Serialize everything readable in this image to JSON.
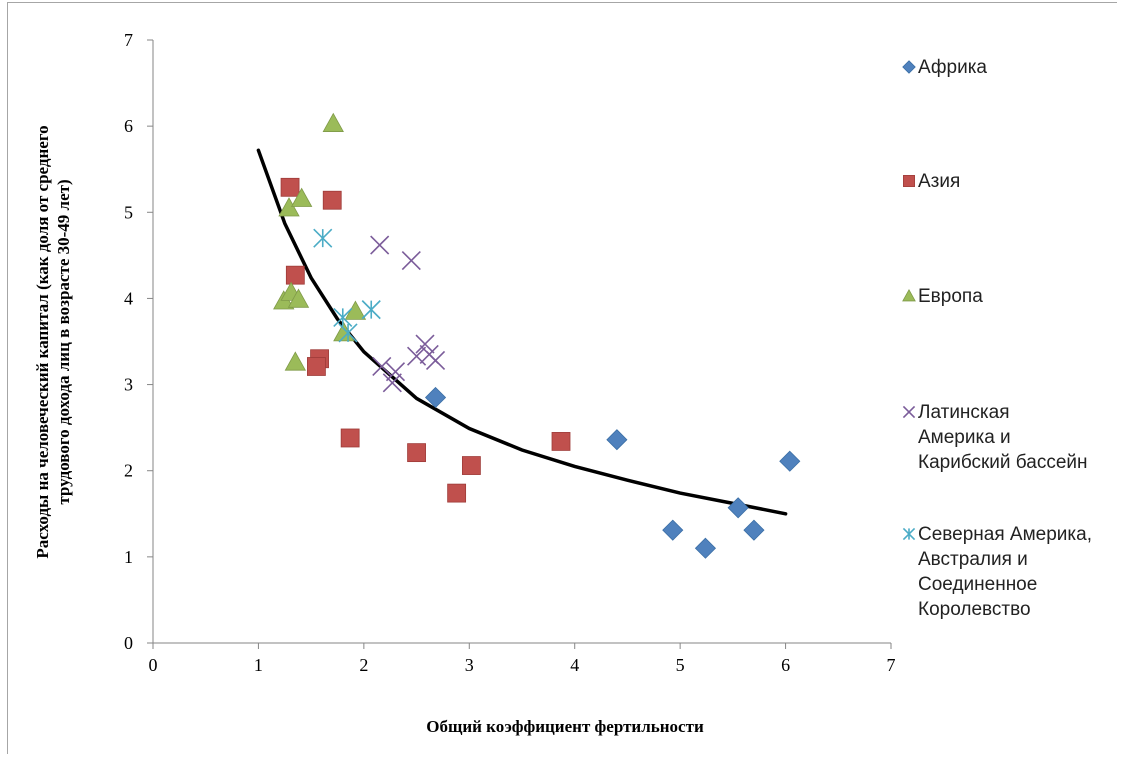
{
  "chart_data": {
    "type": "scatter",
    "title": "",
    "xlabel": "Общий коэффициент фертильности",
    "ylabel_lines": [
      "Расходы на человеческий капитал (как доля от среднего",
      "трудового дохода лиц в возрасте 30-49 лет)"
    ],
    "xlim": [
      0,
      7
    ],
    "ylim": [
      0,
      7
    ],
    "x_ticks": [
      "0",
      "1",
      "2",
      "3",
      "4",
      "5",
      "6",
      "7"
    ],
    "y_ticks": [
      "0",
      "1",
      "2",
      "3",
      "4",
      "5",
      "6",
      "7"
    ],
    "grid": false,
    "legend_position": "right",
    "series": [
      {
        "name": "Африка",
        "label_lines": [
          "Африка"
        ],
        "marker": "diamond",
        "color": "#4f81bd",
        "points": [
          [
            2.68,
            2.85
          ],
          [
            4.4,
            2.36
          ],
          [
            4.93,
            1.31
          ],
          [
            5.24,
            1.1
          ],
          [
            5.55,
            1.57
          ],
          [
            5.7,
            1.31
          ],
          [
            6.04,
            2.11
          ]
        ]
      },
      {
        "name": "Азия",
        "label_lines": [
          "Азия"
        ],
        "marker": "square",
        "color": "#c0504d",
        "points": [
          [
            1.3,
            5.29
          ],
          [
            1.7,
            5.14
          ],
          [
            1.35,
            4.27
          ],
          [
            1.58,
            3.3
          ],
          [
            1.55,
            3.21
          ],
          [
            1.87,
            2.38
          ],
          [
            2.5,
            2.21
          ],
          [
            3.02,
            2.06
          ],
          [
            2.88,
            1.74
          ],
          [
            3.87,
            2.34
          ]
        ]
      },
      {
        "name": "Европа",
        "label_lines": [
          "Европа"
        ],
        "marker": "triangle",
        "color": "#9bbb59",
        "points": [
          [
            1.71,
            6.03
          ],
          [
            1.29,
            5.05
          ],
          [
            1.41,
            5.16
          ],
          [
            1.24,
            3.97
          ],
          [
            1.31,
            4.07
          ],
          [
            1.38,
            3.99
          ],
          [
            1.35,
            3.26
          ],
          [
            1.92,
            3.85
          ],
          [
            1.81,
            3.6
          ]
        ]
      },
      {
        "name": "Латинская Америка и Карибский бассейн",
        "label_lines": [
          "Латинская",
          "Америка и",
          "Карибский бассейн"
        ],
        "marker": "x",
        "color": "#7b5c9a",
        "points": [
          [
            2.15,
            4.62
          ],
          [
            2.45,
            4.44
          ],
          [
            2.58,
            3.47
          ],
          [
            2.5,
            3.33
          ],
          [
            2.62,
            3.35
          ],
          [
            2.68,
            3.28
          ],
          [
            2.17,
            3.21
          ],
          [
            2.3,
            3.15
          ],
          [
            2.27,
            3.02
          ]
        ]
      },
      {
        "name": "Северная Америка, Австралия и Соединенное Королевство",
        "label_lines": [
          "Северная Америка,",
          "Австралия и",
          "Соединенное",
          "Королевство"
        ],
        "marker": "asterisk",
        "color": "#4bacc6",
        "points": [
          [
            1.61,
            4.7
          ],
          [
            1.8,
            3.78
          ],
          [
            2.07,
            3.87
          ],
          [
            1.85,
            3.6
          ]
        ]
      }
    ],
    "trendline": {
      "type": "power",
      "color": "#000000",
      "points": [
        [
          1.0,
          5.72
        ],
        [
          1.25,
          4.87
        ],
        [
          1.5,
          4.24
        ],
        [
          1.75,
          3.76
        ],
        [
          2.0,
          3.38
        ],
        [
          2.5,
          2.84
        ],
        [
          3.0,
          2.49
        ],
        [
          3.5,
          2.24
        ],
        [
          4.0,
          2.05
        ],
        [
          4.5,
          1.89
        ],
        [
          5.0,
          1.74
        ],
        [
          5.5,
          1.62
        ],
        [
          6.0,
          1.5
        ]
      ]
    }
  }
}
